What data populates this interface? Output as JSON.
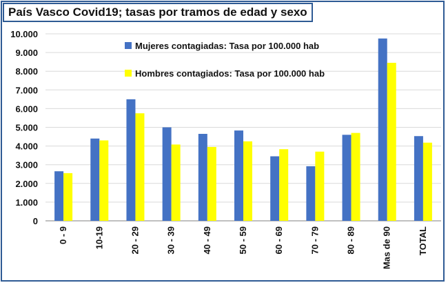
{
  "chart_data": {
    "type": "bar",
    "title": "País Vasco Covid19; tasas por tramos de edad y sexo",
    "categories": [
      "0 - 9",
      "10-19",
      "20 - 29",
      "30 - 39",
      "40 - 49",
      "50 - 59",
      "60 - 69",
      "70 - 79",
      "80 - 89",
      "Mas de 90",
      "TOTAL"
    ],
    "series": [
      {
        "name": "Mujeres contagiadas: Tasa por 100.000 hab",
        "color": "#4472c4",
        "values": [
          2650,
          4400,
          6500,
          5000,
          4650,
          4830,
          3450,
          2920,
          4600,
          9750,
          4530
        ]
      },
      {
        "name": "Hombres contagiados: Tasa por 100.000 hab",
        "color": "#ffff00",
        "values": [
          2550,
          4300,
          5750,
          4080,
          3950,
          4250,
          3830,
          3700,
          4700,
          8450,
          4180
        ]
      }
    ],
    "ylim": [
      0,
      10000
    ],
    "yticks": [
      "0",
      "1.000",
      "2.000",
      "3.000",
      "4.000",
      "5.000",
      "6.000",
      "7.000",
      "8.000",
      "9.000",
      "10.000"
    ],
    "grid": true,
    "legend_position": "top-center"
  }
}
